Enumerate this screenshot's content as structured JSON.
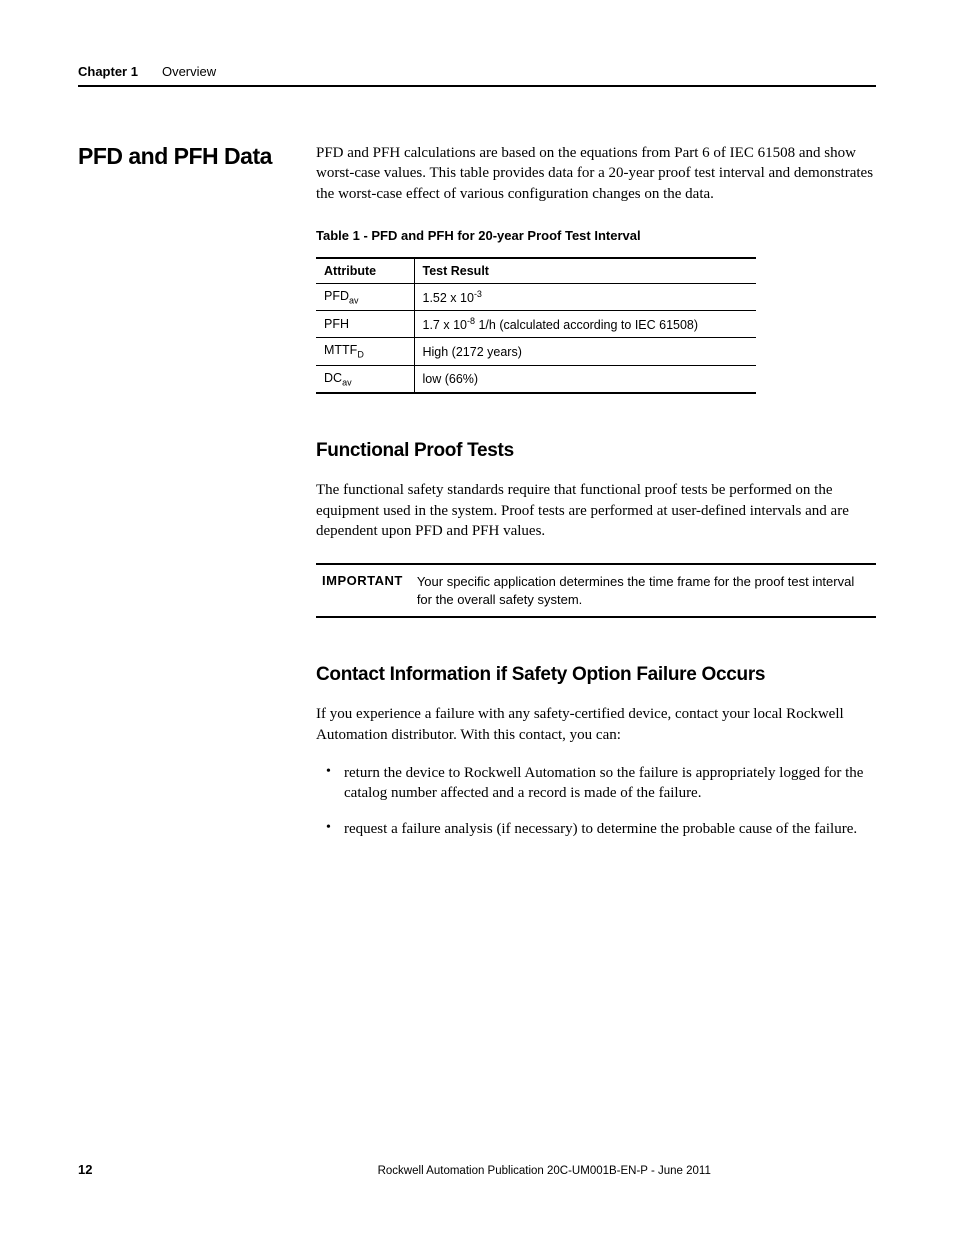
{
  "header": {
    "chapter": "Chapter 1",
    "title": "Overview"
  },
  "section": {
    "heading": "PFD and PFH Data",
    "intro": "PFD and PFH calculations are based on the equations from Part 6 of IEC 61508 and show worst-case values. This table provides data for a 20-year proof test interval and demonstrates the worst-case effect of various configuration changes on the data."
  },
  "table": {
    "caption": "Table 1 - PFD and PFH for 20-year Proof Test Interval",
    "columns": [
      "Attribute",
      "Test Result"
    ],
    "rows": [
      {
        "attr_html": "PFD<span class=\"sub\">av</span>",
        "result_html": "1.52 x 10<span class=\"sup\">-3</span>"
      },
      {
        "attr_html": "PFH",
        "result_html": "1.7 x 10<span class=\"sup\">-8</span> 1/h (calculated according to IEC 61508)"
      },
      {
        "attr_html": "MTTF<span class=\"sub\">D</span>",
        "result_html": "High (2172 years)"
      },
      {
        "attr_html": "DC<span class=\"sub\">av</span>",
        "result_html": "low (66%)"
      }
    ]
  },
  "functional": {
    "heading": "Functional Proof Tests",
    "para": "The functional safety standards require that functional proof tests be performed on the equipment used in the system. Proof tests are performed at user-defined intervals and are dependent upon PFD and PFH values.",
    "callout_label": "IMPORTANT",
    "callout_text": "Your specific application determines the time frame for the proof test interval for the overall safety system."
  },
  "contact": {
    "heading": "Contact Information if Safety Option Failure Occurs",
    "para": "If you experience a failure with any safety-certified device, contact your local Rockwell Automation distributor. With this contact, you can:",
    "bullets": [
      "return the device to Rockwell Automation so the failure is appropriately logged for the catalog number affected and a record is made of the failure.",
      "request a failure analysis (if necessary) to determine the probable cause of the failure."
    ]
  },
  "footer": {
    "page": "12",
    "pub": "Rockwell Automation Publication 20C-UM001B-EN-P - June 2011"
  }
}
